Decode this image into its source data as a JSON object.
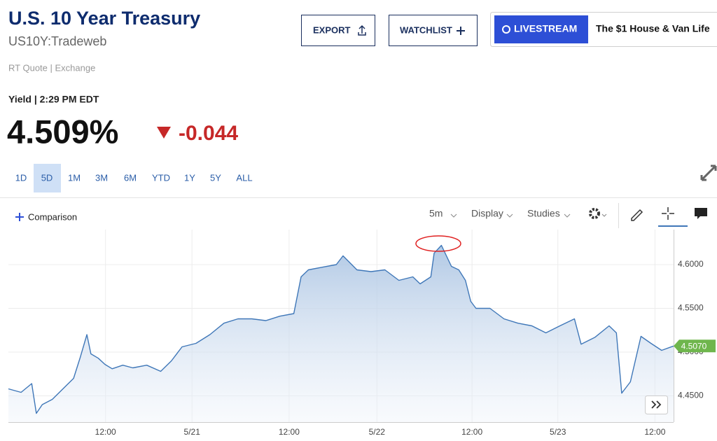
{
  "header": {
    "title": "U.S. 10 Year Treasury",
    "symbol": "US10Y:Tradeweb",
    "export": "EXPORT",
    "watchlist": "WATCHLIST",
    "livestream": "LIVESTREAM",
    "promo": "The $1 House & Van Life"
  },
  "quote": {
    "source": "RT Quote | Exchange",
    "label": "Yield | 2:29 PM EDT",
    "price": "4.509%",
    "change": "-0.044"
  },
  "ranges": [
    "1D",
    "5D",
    "1M",
    "3M",
    "6M",
    "YTD",
    "1Y",
    "5Y",
    "ALL"
  ],
  "active_range": 1,
  "toolbar": {
    "comparison": "Comparison",
    "interval": "5m",
    "display": "Display",
    "studies": "Studies"
  },
  "chart_data": {
    "type": "line",
    "color": "#3f77b8",
    "x": [
      0,
      1.9,
      3.5,
      4.2,
      5.1,
      6.6,
      8.2,
      9.8,
      10.8,
      11.8,
      12.4,
      13.5,
      14.5,
      15.6,
      17.2,
      18.7,
      20.8,
      22.9,
      24.5,
      26.1,
      28.2,
      30.3,
      32.4,
      34.5,
      36.6,
      38.7,
      40.8,
      42.9,
      44.0,
      45.1,
      47.2,
      49.3,
      50.3,
      52.4,
      54.5,
      56.6,
      58.7,
      60.8,
      61.9,
      63.5,
      64.0,
      65.1,
      65.6,
      66.6,
      67.7,
      68.7,
      69.5,
      70.3,
      72.4,
      74.5,
      76.6,
      78.7,
      80.8,
      82.9,
      85.1,
      86.1,
      88.2,
      90.3,
      91.4,
      92.2,
      93.5,
      95.1,
      96.6,
      98.2,
      100
    ],
    "values": [
      4.458,
      4.454,
      4.464,
      4.43,
      4.44,
      4.446,
      4.458,
      4.47,
      4.494,
      4.52,
      4.498,
      4.493,
      4.486,
      4.481,
      4.485,
      4.482,
      4.485,
      4.478,
      4.49,
      4.506,
      4.51,
      4.52,
      4.533,
      4.538,
      4.538,
      4.536,
      4.541,
      4.544,
      4.586,
      4.594,
      4.597,
      4.6,
      4.61,
      4.594,
      4.592,
      4.594,
      4.582,
      4.586,
      4.578,
      4.586,
      4.613,
      4.622,
      4.614,
      4.598,
      4.594,
      4.582,
      4.558,
      4.55,
      4.55,
      4.538,
      4.533,
      4.53,
      4.522,
      4.53,
      4.538,
      4.509,
      4.517,
      4.53,
      4.522,
      4.453,
      4.466,
      4.518,
      4.51,
      4.502,
      4.507
    ],
    "xlim": [
      0,
      100
    ],
    "ylim": [
      4.42,
      4.64
    ],
    "xticks": [
      {
        "value": 14.6,
        "label": "12:00"
      },
      {
        "value": 27.6,
        "label": "5/21"
      },
      {
        "value": 42.2,
        "label": "12:00"
      },
      {
        "value": 55.4,
        "label": "5/22"
      },
      {
        "value": 69.7,
        "label": "12:00"
      },
      {
        "value": 82.6,
        "label": "5/23"
      },
      {
        "value": 97.2,
        "label": "12:00"
      }
    ],
    "yticks": [
      {
        "value": 4.45,
        "label": "4.4500"
      },
      {
        "value": 4.5,
        "label": "4.5000"
      },
      {
        "value": 4.55,
        "label": "4.5500"
      },
      {
        "value": 4.6,
        "label": "4.6000"
      }
    ],
    "current": {
      "value": 4.507,
      "label": "4.5070"
    },
    "grid": true
  }
}
